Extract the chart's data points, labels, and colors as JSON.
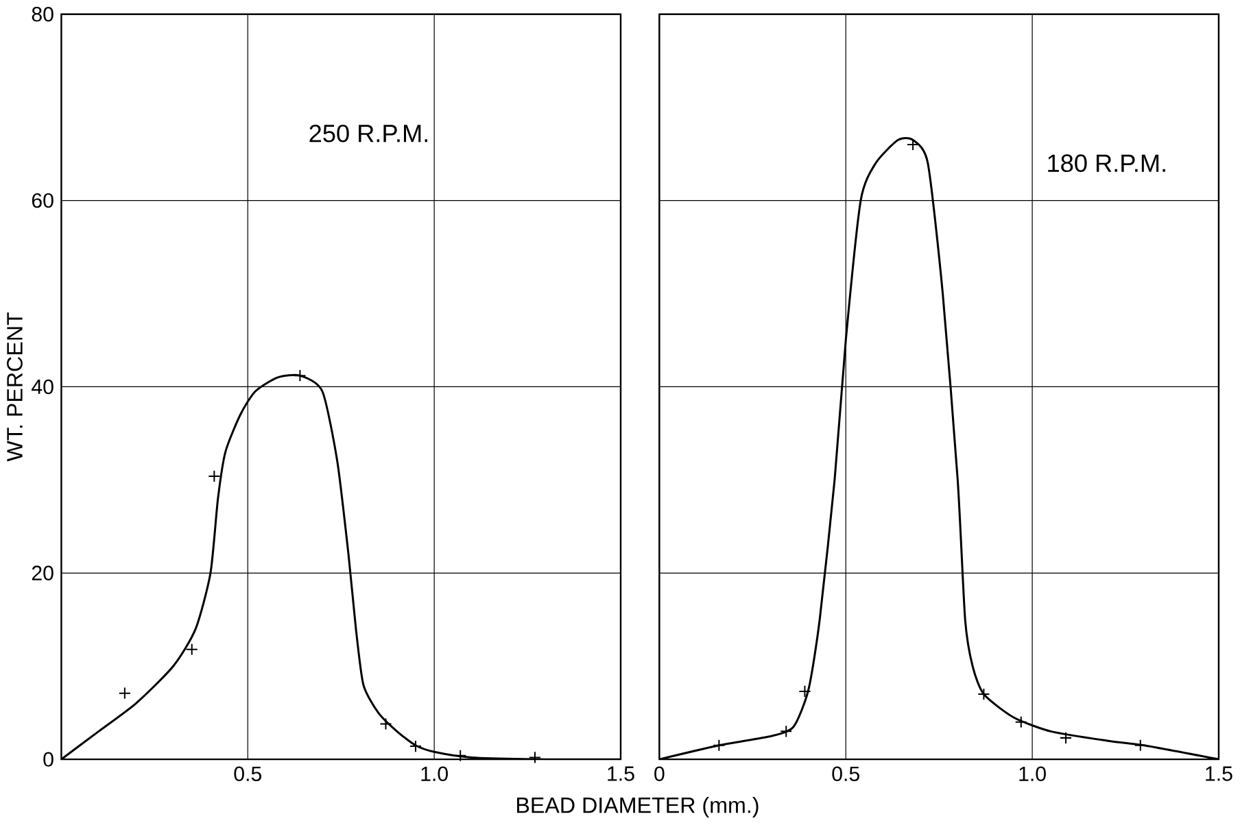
{
  "chart_data": [
    {
      "type": "line",
      "xlabel": "BEAD DIAMETER   (mm.)",
      "ylabel": "WT. PERCENT",
      "annotations": [
        "250 R.P.M."
      ],
      "xlim": [
        0,
        1.5
      ],
      "ylim": [
        0,
        80
      ],
      "xticks": [
        0.5,
        {
          "value": 1,
          "label": "1.0"
        },
        1.5
      ],
      "yticks": [
        0,
        20,
        40,
        60,
        80
      ],
      "grid": true,
      "series": [
        {
          "type": "scatter",
          "marker": "cross",
          "color": "#000000",
          "x": [
            0.17,
            0.35,
            0.41,
            0.64,
            0.87,
            0.95,
            1.07,
            1.27
          ],
          "values": [
            7.1,
            11.8,
            30.4,
            41.2,
            3.8,
            1.4,
            0.4,
            0.2
          ]
        },
        {
          "color": "#000000",
          "x": [
            0,
            0.1,
            0.2,
            0.3,
            0.36,
            0.4,
            0.42,
            0.44,
            0.48,
            0.52,
            0.58,
            0.64,
            0.7,
            0.74,
            0.77,
            0.79,
            0.81,
            0.85,
            0.9,
            0.95,
            1.0,
            1.1,
            1.3,
            1.5
          ],
          "values": [
            0,
            3,
            6,
            10,
            14,
            20,
            28,
            33,
            37,
            39.5,
            41,
            41.2,
            39.5,
            32,
            22,
            14,
            8,
            5,
            3,
            1.5,
            0.8,
            0.2,
            0,
            0
          ]
        }
      ]
    },
    {
      "type": "line",
      "annotations": [
        "180 R.P.M."
      ],
      "xlim": [
        0,
        1.5
      ],
      "ylim": [
        0,
        80
      ],
      "xticks": [
        0,
        0.5,
        {
          "value": 1,
          "label": "1.0"
        },
        1.5
      ],
      "yticks": [
        0,
        20,
        40,
        60,
        80
      ],
      "grid": true,
      "tick_labels": "x",
      "series": [
        {
          "type": "scatter",
          "marker": "cross",
          "color": "#000000",
          "x": [
            0.16,
            0.34,
            0.39,
            0.68,
            0.87,
            0.97,
            1.09,
            1.29
          ],
          "values": [
            1.5,
            3,
            7.3,
            66,
            7,
            4,
            2.3,
            1.5
          ]
        },
        {
          "color": "#000000",
          "x": [
            0,
            0.16,
            0.3,
            0.36,
            0.4,
            0.43,
            0.47,
            0.5,
            0.54,
            0.58,
            0.64,
            0.68,
            0.72,
            0.76,
            0.8,
            0.82,
            0.84,
            0.87,
            0.95,
            1.05,
            1.2,
            1.3,
            1.5
          ],
          "values": [
            0,
            1.5,
            2.5,
            3.5,
            7.5,
            15,
            30,
            45,
            60,
            64,
            66.5,
            66.5,
            64,
            50,
            30,
            15,
            10,
            7,
            4.5,
            3,
            2,
            1.5,
            0
          ]
        }
      ]
    }
  ]
}
